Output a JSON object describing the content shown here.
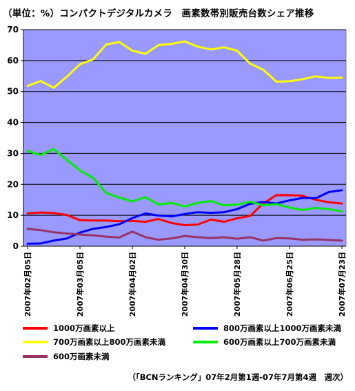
{
  "chart_data": {
    "type": "line",
    "title": "（単位：%）コンパクトデジタルカメラ　画素数帯別販売台数シェア推移",
    "ylim": [
      0,
      70
    ],
    "yticks": [
      0,
      10,
      20,
      30,
      40,
      50,
      60,
      70
    ],
    "grid": true,
    "x_tick_labels": [
      "2007年02月05日",
      "2007年03月05日",
      "2007年04月02日",
      "2007年04月30日",
      "2007年05月28日",
      "2007年06月25日",
      "2007年07月23日"
    ],
    "x_tick_positions": [
      0,
      4,
      8,
      12,
      16,
      20,
      24
    ],
    "x": [
      0,
      1,
      2,
      3,
      4,
      5,
      6,
      7,
      8,
      9,
      10,
      11,
      12,
      13,
      14,
      15,
      16,
      17,
      18,
      19,
      20,
      21,
      22,
      23,
      24
    ],
    "series": [
      {
        "name": "1000万画素以上",
        "color": "#ff0000",
        "values": [
          10.6,
          10.9,
          10.7,
          10.1,
          8.4,
          8.3,
          8.3,
          8.1,
          8.2,
          7.9,
          8.8,
          7.5,
          6.8,
          7.0,
          8.6,
          7.9,
          9.0,
          9.8,
          13.8,
          16.5,
          16.5,
          16.3,
          15.0,
          14.2,
          13.8
        ]
      },
      {
        "name": "800万画素以上1000万画素未満",
        "color": "#0000ff",
        "values": [
          0.8,
          0.9,
          1.8,
          2.5,
          4.4,
          5.6,
          6.2,
          7.1,
          9.1,
          10.6,
          9.9,
          9.6,
          10.4,
          11.0,
          10.8,
          11.0,
          12.0,
          13.7,
          14.3,
          13.8,
          14.8,
          15.6,
          15.5,
          17.5,
          18.1
        ]
      },
      {
        "name": "700万画素以上800万画素未満",
        "color": "#ffff00",
        "values": [
          51.8,
          53.4,
          51.2,
          54.8,
          58.8,
          60.4,
          65.2,
          66.0,
          63.2,
          62.2,
          65.0,
          65.4,
          66.2,
          64.5,
          63.6,
          64.3,
          63.2,
          59.0,
          57.0,
          53.2,
          53.3,
          54.0,
          54.9,
          54.4,
          54.5
        ]
      },
      {
        "name": "600万画素以上700万画素未満",
        "color": "#00ee00",
        "values": [
          30.8,
          29.5,
          31.4,
          27.9,
          24.5,
          22.1,
          17.2,
          15.7,
          14.5,
          15.8,
          13.5,
          14.0,
          12.8,
          14.0,
          14.6,
          13.2,
          13.4,
          14.4,
          13.2,
          13.6,
          12.5,
          11.7,
          12.4,
          12.0,
          11.3
        ]
      },
      {
        "name": "600万画素未満",
        "color": "#993366",
        "values": [
          5.6,
          5.2,
          4.5,
          4.1,
          3.8,
          3.5,
          3.1,
          2.8,
          4.7,
          2.9,
          2.1,
          2.5,
          3.3,
          2.9,
          2.6,
          2.9,
          2.4,
          2.9,
          1.8,
          2.6,
          2.5,
          2.1,
          2.2,
          2.0,
          1.8
        ]
      }
    ]
  },
  "source_note": "（「BCNランキング」07年2月第1週-07年7月第4週　週次）"
}
